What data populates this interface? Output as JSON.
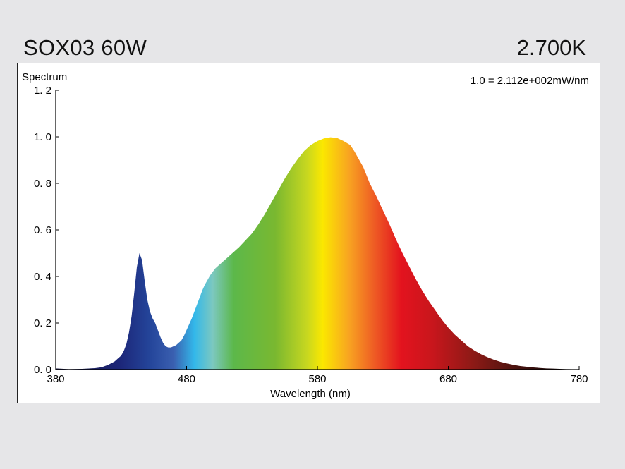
{
  "header": {
    "product_name": "SOX03 60W",
    "color_temperature": "2.700K"
  },
  "chart_data": {
    "type": "area",
    "ylabel": "Spectrum",
    "xlabel": "Wavelength (nm)",
    "scale_note": "1.0 =  2.112e+002mW/nm",
    "xlim": [
      380,
      780
    ],
    "ylim": [
      0,
      1.2
    ],
    "x_ticks": [
      380,
      480,
      580,
      680,
      780
    ],
    "x_tick_labels": [
      "380",
      "480",
      "580",
      "680",
      "780"
    ],
    "y_ticks": [
      0,
      0.2,
      0.4,
      0.6,
      0.8,
      1.0,
      1.2
    ],
    "y_tick_labels": [
      "0. 0",
      "0. 2",
      "0. 4",
      "0. 6",
      "0. 8",
      "1. 0",
      "1. 2"
    ],
    "grid": false,
    "fill": "spectral",
    "x": [
      380,
      390,
      400,
      410,
      415,
      420,
      425,
      430,
      432,
      434,
      436,
      438,
      440,
      442,
      444,
      446,
      448,
      450,
      452,
      454,
      456,
      458,
      460,
      462,
      464,
      466,
      468,
      470,
      472,
      474,
      476,
      478,
      480,
      482,
      484,
      486,
      488,
      490,
      492,
      494,
      496,
      498,
      500,
      502,
      504,
      506,
      508,
      510,
      512,
      514,
      516,
      518,
      520,
      525,
      530,
      535,
      540,
      545,
      550,
      555,
      560,
      565,
      570,
      575,
      580,
      585,
      590,
      595,
      600,
      605,
      608,
      610,
      615,
      620,
      625,
      630,
      635,
      640,
      645,
      650,
      655,
      660,
      665,
      670,
      675,
      680,
      685,
      690,
      695,
      700,
      705,
      710,
      715,
      720,
      725,
      730,
      735,
      740,
      745,
      750,
      755,
      760,
      765,
      770,
      775,
      780
    ],
    "values": [
      0.005,
      0.002,
      0.003,
      0.006,
      0.01,
      0.02,
      0.035,
      0.06,
      0.08,
      0.11,
      0.16,
      0.23,
      0.33,
      0.44,
      0.5,
      0.47,
      0.38,
      0.3,
      0.25,
      0.22,
      0.2,
      0.17,
      0.14,
      0.115,
      0.1,
      0.095,
      0.095,
      0.1,
      0.105,
      0.115,
      0.125,
      0.145,
      0.17,
      0.195,
      0.22,
      0.25,
      0.28,
      0.31,
      0.34,
      0.365,
      0.385,
      0.405,
      0.42,
      0.435,
      0.445,
      0.455,
      0.465,
      0.475,
      0.485,
      0.495,
      0.505,
      0.515,
      0.525,
      0.555,
      0.585,
      0.625,
      0.67,
      0.72,
      0.77,
      0.82,
      0.865,
      0.905,
      0.94,
      0.965,
      0.982,
      0.993,
      0.998,
      0.995,
      0.982,
      0.965,
      0.94,
      0.92,
      0.87,
      0.8,
      0.745,
      0.685,
      0.625,
      0.56,
      0.5,
      0.445,
      0.39,
      0.34,
      0.295,
      0.255,
      0.215,
      0.18,
      0.15,
      0.125,
      0.1,
      0.082,
      0.066,
      0.053,
      0.042,
      0.033,
      0.026,
      0.02,
      0.015,
      0.012,
      0.009,
      0.007,
      0.005,
      0.004,
      0.003,
      0.002,
      0.0015,
      0.001
    ],
    "colors": {
      "frame": "#222222",
      "panel": "#ffffff",
      "background": "#e6e6e8"
    }
  }
}
